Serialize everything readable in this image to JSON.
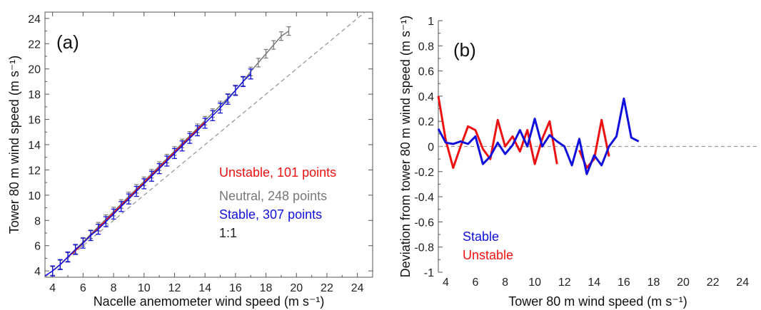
{
  "chart_data": [
    {
      "type": "line",
      "panel_label": "(a)",
      "xlabel": "Nacelle anemometer wind speed (m s⁻¹)",
      "ylabel": "Tower 80 m wind speed (m s⁻¹)",
      "xlim": [
        3.5,
        25
      ],
      "ylim": [
        3.5,
        24.5
      ],
      "xticks": [
        "4",
        "6",
        "8",
        "10",
        "12",
        "14",
        "16",
        "18",
        "20",
        "22",
        "24"
      ],
      "yticks": [
        "4",
        "6",
        "8",
        "10",
        "12",
        "14",
        "16",
        "18",
        "20",
        "22",
        "24"
      ],
      "grid": false,
      "legend_position": "center-right",
      "series": [
        {
          "name": "Unstable, 101 points",
          "color": "#ee1111",
          "x": [
            4,
            4.5,
            5,
            5.5,
            6,
            6.5,
            7,
            7.5,
            8,
            8.5,
            9,
            9.5,
            10,
            10.5,
            11,
            11.5,
            12,
            12.5,
            13,
            13.5,
            14
          ],
          "y": [
            4.0,
            4.5,
            5.1,
            5.6,
            6.2,
            6.8,
            7.4,
            8.0,
            8.6,
            9.2,
            9.8,
            10.4,
            11.0,
            11.6,
            12.2,
            12.8,
            13.4,
            14.0,
            14.6,
            15.2,
            15.8
          ]
        },
        {
          "name": "Neutral, 248 points",
          "color": "#777777",
          "x": [
            4,
            4.5,
            5,
            5.5,
            6,
            6.5,
            7,
            7.5,
            8,
            8.5,
            9,
            9.5,
            10,
            10.5,
            11,
            11.5,
            12,
            12.5,
            13,
            13.5,
            14,
            14.5,
            15,
            15.5,
            16,
            16.5,
            17,
            17.5,
            18,
            18.5,
            19,
            19.5
          ],
          "y": [
            4.0,
            4.5,
            5.1,
            5.7,
            6.3,
            6.9,
            7.5,
            8.1,
            8.7,
            9.3,
            9.9,
            10.5,
            11.1,
            11.7,
            12.3,
            12.9,
            13.5,
            14.1,
            14.7,
            15.3,
            15.9,
            16.5,
            17.1,
            17.7,
            18.3,
            19.0,
            19.8,
            20.5,
            21.2,
            21.9,
            22.6,
            23.0
          ]
        },
        {
          "name": "Stable, 307 points",
          "color": "#1111dd",
          "x": [
            3.5,
            4,
            4.5,
            5,
            5.5,
            6,
            6.5,
            7,
            7.5,
            8,
            8.5,
            9,
            9.5,
            10,
            10.5,
            11,
            11.5,
            12,
            12.5,
            13,
            13.5,
            14,
            14.5,
            15,
            15.5,
            16,
            16.5,
            17
          ],
          "y": [
            3.6,
            4.0,
            4.5,
            5.1,
            5.7,
            6.2,
            6.8,
            7.3,
            7.9,
            8.5,
            9.1,
            9.7,
            10.3,
            10.9,
            11.5,
            12.1,
            12.7,
            13.3,
            13.9,
            14.5,
            15.1,
            15.7,
            16.3,
            16.9,
            17.6,
            18.3,
            19.0,
            19.6
          ],
          "errorbar_x": [
            4,
            4.5,
            5,
            5.5,
            6,
            6.5,
            7,
            7.5,
            8,
            8.5,
            9,
            9.5,
            10,
            10.5,
            11,
            11.5,
            12,
            12.5,
            13,
            13.5,
            14,
            14.5,
            15,
            15.5,
            16,
            16.5,
            17
          ]
        },
        {
          "name": "1:1",
          "color": "#999999",
          "dashed": true,
          "x": [
            3.5,
            24.5
          ],
          "y": [
            3.5,
            24.5
          ]
        }
      ]
    },
    {
      "type": "line",
      "panel_label": "(b)",
      "xlabel": "Tower 80 m wind speed (m s⁻¹)",
      "ylabel": "Deviation from tower 80 m wind speed (m s⁻¹)",
      "xlim": [
        3.5,
        25
      ],
      "ylim": [
        -1,
        1
      ],
      "xticks": [
        "4",
        "6",
        "8",
        "10",
        "12",
        "14",
        "16",
        "18",
        "20",
        "22",
        "24"
      ],
      "yticks": [
        "1",
        "0.8",
        "0.6",
        "0.4",
        "0.2",
        "0",
        "-0.2",
        "-0.4",
        "-0.6",
        "-0.8",
        "-1"
      ],
      "grid": false,
      "legend_position": "bottom-left",
      "series": [
        {
          "name": "Stable",
          "color": "#1111dd",
          "x": [
            3.5,
            4,
            4.5,
            5,
            5.5,
            6,
            6.5,
            7,
            7.5,
            8,
            8.5,
            9,
            9.5,
            10,
            10.5,
            11,
            11.5,
            12,
            12.5,
            13,
            13.5,
            14,
            14.5,
            15,
            15.5,
            16,
            16.5,
            17
          ],
          "y": [
            0.14,
            0.03,
            0.02,
            0.04,
            0.02,
            0.08,
            -0.14,
            -0.08,
            0.03,
            -0.06,
            0.01,
            0.13,
            0.0,
            0.22,
            0.0,
            0.09,
            0.04,
            0.0,
            -0.15,
            0.06,
            -0.22,
            -0.07,
            -0.15,
            0.0,
            0.08,
            0.38,
            0.07,
            0.04
          ]
        },
        {
          "name": "Unstable",
          "color": "#ee1111",
          "segments": [
            {
              "x": [
                3.5,
                4,
                4.5,
                5,
                5.5,
                6,
                6.5,
                7,
                7.5,
                8,
                8.5,
                9,
                9.5,
                10,
                10.5,
                11,
                11.5
              ],
              "y": [
                0.4,
                0.05,
                -0.17,
                0.0,
                0.16,
                0.13,
                -0.02,
                -0.1,
                0.21,
                0.0,
                0.08,
                -0.04,
                0.13,
                -0.14,
                0.06,
                0.2,
                -0.14
              ]
            },
            {
              "x": [
                13,
                13.5,
                14,
                14.5,
                15
              ],
              "y": [
                -0.03,
                -0.17,
                -0.1,
                0.21,
                -0.08
              ]
            }
          ]
        },
        {
          "name": "zero-reference",
          "color": "#999999",
          "dashed": true,
          "x": [
            3.5,
            25
          ],
          "y": [
            0,
            0
          ]
        }
      ],
      "legend_entries": [
        {
          "name": "Stable",
          "color": "#1111dd"
        },
        {
          "name": "Unstable",
          "color": "#ee1111"
        }
      ]
    }
  ]
}
